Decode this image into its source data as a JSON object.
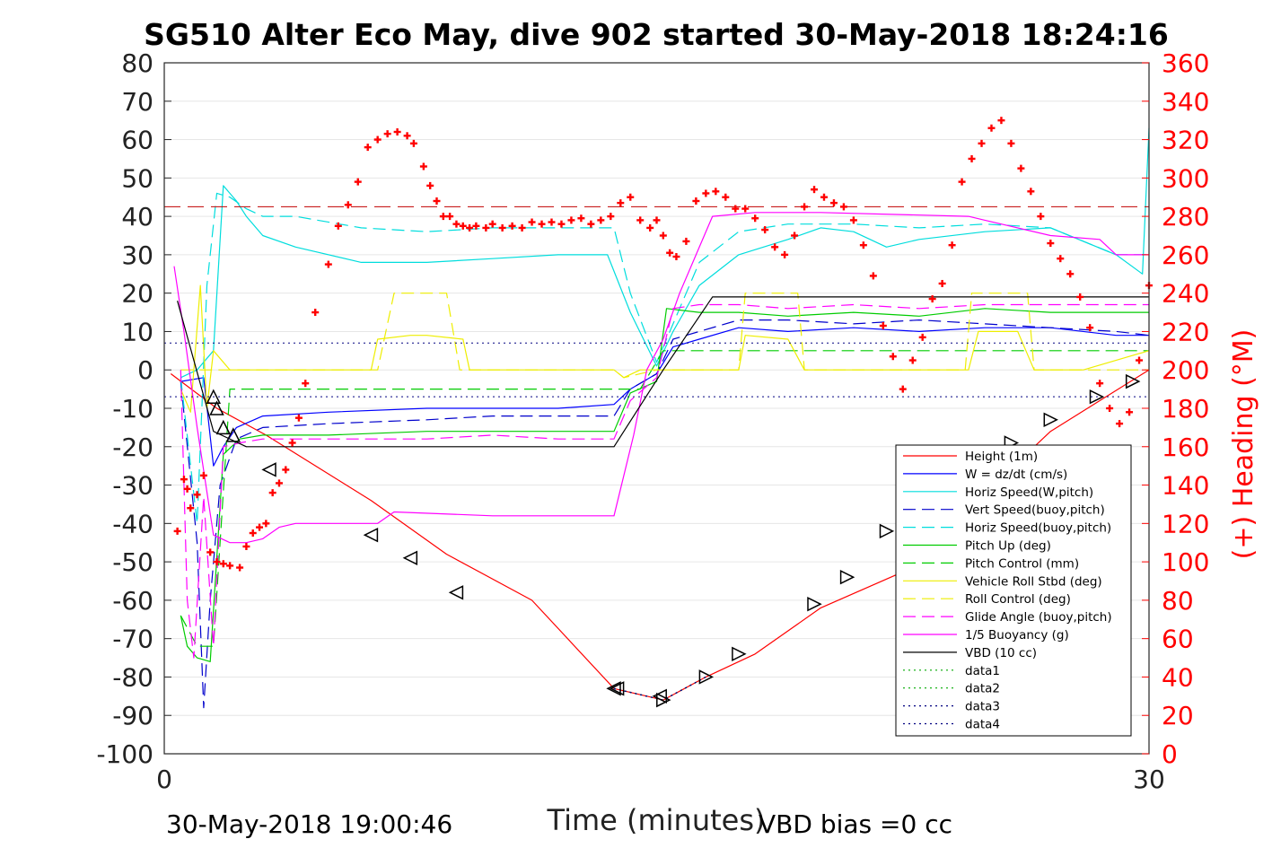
{
  "chart_data": {
    "type": "line",
    "title": "SG510 Alter Eco May, dive 902 started 30-May-2018 18:24:16",
    "xlabel": "Time (minutes)",
    "ylabel_right": "(+) Heading (°M)",
    "xlim": [
      0,
      30
    ],
    "ylim_left": [
      -100,
      80
    ],
    "ylim_right": [
      0,
      360
    ],
    "x_ticks": [
      "0",
      "30"
    ],
    "y_ticks_left": [
      "80",
      "70",
      "60",
      "50",
      "40",
      "30",
      "20",
      "10",
      "0",
      "-10",
      "-20",
      "-30",
      "-40",
      "-50",
      "-60",
      "-70",
      "-80",
      "-90",
      "-100"
    ],
    "y_ticks_right": [
      "360",
      "340",
      "320",
      "300",
      "280",
      "260",
      "240",
      "220",
      "200",
      "180",
      "160",
      "140",
      "120",
      "100",
      "80",
      "60",
      "40",
      "20",
      "0"
    ],
    "grid": true,
    "legend_position": "bottom-right",
    "footer_left": "30-May-2018 19:00:46",
    "footer_right": "VBD bias =0 cc",
    "reference_lines": [
      {
        "y": 42.5,
        "color": "#c00000",
        "style": "dashed"
      },
      {
        "y": 7,
        "color": "#000080",
        "style": "dotted"
      },
      {
        "y": -7,
        "color": "#000080",
        "style": "dotted"
      }
    ],
    "series": [
      {
        "name": "Height (1m)",
        "color": "#ff0000",
        "dash": "solid",
        "x": [
          0.2,
          1.6,
          3.1,
          6.3,
          8.6,
          11.2,
          13.7,
          15.2,
          16.5,
          18.0,
          20.0,
          22.4,
          23.4,
          27.0,
          30.0
        ],
        "y": [
          -1,
          -10,
          -17,
          -34,
          -48,
          -60,
          -83,
          -86,
          -80,
          -74,
          -62,
          -53,
          -45,
          -16,
          0
        ]
      },
      {
        "name": "W = dz/dt (cm/s)",
        "color": "#0000ff",
        "dash": "solid",
        "x": [
          0.5,
          1.2,
          1.5,
          1.8,
          2.2,
          3.0,
          5,
          8,
          10,
          12,
          13.7,
          14.2,
          15.0,
          15.5,
          16.3,
          17.5,
          19,
          21,
          23,
          25,
          27,
          29,
          30
        ],
        "y": [
          -3,
          -2,
          -25,
          -20,
          -15,
          -12,
          -11,
          -10,
          -10,
          -10,
          -9,
          -5,
          -1,
          6,
          8,
          11,
          10,
          11,
          10,
          11,
          11,
          9,
          9
        ]
      },
      {
        "name": "Horiz Speed(W,pitch)",
        "color": "#00dddd",
        "dash": "solid",
        "x": [
          0.5,
          1.0,
          1.5,
          1.8,
          2.2,
          2.5,
          3.0,
          4,
          6,
          8,
          10,
          12,
          13.5,
          14.2,
          15.0,
          15.5,
          16.3,
          17.5,
          19,
          20,
          21,
          22,
          23,
          25,
          27,
          29,
          29.8,
          30
        ],
        "y": [
          -2,
          0,
          5,
          48,
          44,
          40,
          35,
          32,
          28,
          28,
          29,
          30,
          30,
          15,
          1,
          10,
          22,
          30,
          34,
          37,
          36,
          32,
          34,
          36,
          37,
          30,
          25,
          63
        ]
      },
      {
        "name": "Vert Speed(buoy,pitch)",
        "color": "#0000cc",
        "dash": "dashed",
        "x": [
          0.5,
          1.0,
          1.2,
          1.4,
          1.7,
          2.2,
          3.0,
          5,
          8,
          10,
          12,
          13.7,
          14.2,
          15.0,
          15.5,
          16.3,
          17.5,
          19,
          21,
          23,
          25,
          27,
          29,
          30
        ],
        "y": [
          -3,
          -45,
          -88,
          -60,
          -30,
          -18,
          -15,
          -14,
          -13,
          -12,
          -12,
          -12,
          -5,
          -1,
          8,
          10,
          13,
          13,
          12,
          13,
          12,
          11,
          10,
          9
        ]
      },
      {
        "name": "Horiz Speed(buoy,pitch)",
        "color": "#00dddd",
        "dash": "dashed",
        "x": [
          0.5,
          1.0,
          1.3,
          1.6,
          2.0,
          2.5,
          3.0,
          4,
          6,
          8,
          10,
          12,
          13.7,
          14.2,
          15.0,
          15.5,
          16.3,
          17.5,
          19,
          21,
          23,
          25,
          27,
          29,
          30
        ],
        "y": [
          -2,
          -40,
          22,
          46,
          45,
          42,
          40,
          40,
          37,
          36,
          37,
          37,
          37,
          20,
          2,
          12,
          28,
          36,
          38,
          38,
          37,
          38,
          37,
          30,
          30
        ]
      },
      {
        "name": "Pitch Up (deg)",
        "color": "#00cc00",
        "dash": "solid",
        "x": [
          0.5,
          0.7,
          1.0,
          1.4,
          1.8,
          2.3,
          3.0,
          5,
          8,
          10,
          12,
          13.7,
          14.2,
          15.0,
          15.3,
          16.3,
          17.5,
          19,
          21,
          23,
          25,
          27,
          29,
          30
        ],
        "y": [
          -64,
          -72,
          -75,
          -76,
          -22,
          -18,
          -17,
          -17,
          -16,
          -16,
          -16,
          -16,
          -6,
          -3,
          16,
          15,
          15,
          14,
          15,
          14,
          16,
          15,
          15,
          15
        ]
      },
      {
        "name": "Pitch Control (mm)",
        "color": "#00cc00",
        "dash": "dashed",
        "x": [
          0.5,
          1.0,
          1.5,
          2.0,
          3.0,
          8,
          13.7,
          14.5,
          15.2,
          15.6,
          20,
          25,
          30
        ],
        "y": [
          -64,
          -72,
          -72,
          -5,
          -5,
          -5,
          -5,
          -5,
          5,
          5,
          5,
          5,
          5
        ]
      },
      {
        "name": "Vehicle Roll Stbd (deg)",
        "color": "#eeee00",
        "dash": "solid",
        "x": [
          0.5,
          0.8,
          1.1,
          1.3,
          1.5,
          2.0,
          2.3,
          3.0,
          6.3,
          6.5,
          7.5,
          8.0,
          9.1,
          9.3,
          13.7,
          14.0,
          14.5,
          15.0,
          15.5,
          17.5,
          17.7,
          19,
          19.5,
          20,
          24.5,
          24.8,
          26.0,
          26.5,
          27.5,
          28.0,
          30
        ],
        "y": [
          -5,
          -11,
          22,
          -10,
          5,
          0,
          0,
          0,
          0,
          8,
          9,
          9,
          8,
          0,
          0,
          -2,
          0,
          0,
          0,
          0,
          9,
          8,
          0,
          0,
          0,
          10,
          10,
          0,
          0,
          0,
          5
        ]
      },
      {
        "name": "Roll Control (deg)",
        "color": "#eeee00",
        "dash": "dashed",
        "x": [
          0.5,
          1.2,
          1.5,
          2.0,
          3.0,
          6.3,
          6.5,
          7.0,
          8.6,
          9.0,
          13.7,
          14.0,
          15.0,
          15.5,
          17.5,
          17.7,
          19.3,
          19.5,
          24.4,
          24.6,
          26.3,
          26.5,
          27.5,
          28.0,
          30
        ],
        "y": [
          0,
          0,
          0,
          0,
          0,
          0,
          0,
          20,
          20,
          0,
          0,
          -2,
          0,
          0,
          0,
          20,
          20,
          0,
          0,
          20,
          20,
          0,
          0,
          0,
          0
        ]
      },
      {
        "name": "Glide Angle (buoy,pitch)",
        "color": "#ff00ff",
        "dash": "dashed",
        "x": [
          0.5,
          0.7,
          0.9,
          1.2,
          1.5,
          1.8,
          2.3,
          3.0,
          5,
          8,
          10,
          12,
          13.7,
          14.2,
          15.0,
          15.5,
          16.3,
          17.5,
          19,
          21,
          23,
          25,
          27,
          29,
          30
        ],
        "y": [
          0,
          -60,
          -75,
          -33,
          -72,
          -20,
          -19,
          -18,
          -18,
          -18,
          -17,
          -18,
          -18,
          -8,
          -2,
          16,
          17,
          17,
          16,
          17,
          16,
          17,
          17,
          17,
          17
        ]
      },
      {
        "name": "1/5 Buoyancy (g)",
        "color": "#ff00ff",
        "dash": "solid",
        "x": [
          0.3,
          0.6,
          1.0,
          1.5,
          2.0,
          2.5,
          3.0,
          3.5,
          4.0,
          5.0,
          6.5,
          7.0,
          10,
          13.7,
          14.3,
          14.7,
          15.2,
          15.7,
          16.2,
          16.7,
          18,
          20,
          24.5,
          25.0,
          27,
          28.5,
          29.0,
          30
        ],
        "y": [
          27,
          10,
          -15,
          -43,
          -45,
          -45,
          -44,
          -41,
          -40,
          -40,
          -40,
          -37,
          -38,
          -38,
          -17,
          0,
          8,
          20,
          30,
          40,
          41,
          41,
          40,
          39,
          35,
          34,
          30,
          30
        ]
      },
      {
        "name": "VBD (10 cc)",
        "color": "#000000",
        "dash": "solid",
        "x": [
          0.4,
          1.5,
          2.5,
          13.7,
          15.2,
          16.7,
          30
        ],
        "y": [
          18,
          -16,
          -20,
          -20,
          0,
          19,
          19
        ]
      },
      {
        "name": "data1",
        "color": "#00aa00",
        "dash": "dotted",
        "x": [
          13.7,
          15.2,
          16.5
        ],
        "y": [
          -83,
          -86,
          -80
        ]
      },
      {
        "name": "data2",
        "color": "#00aa00",
        "dash": "dotted",
        "x": [
          13.7,
          15.2,
          16.5
        ],
        "y": [
          -83,
          -86,
          -80
        ]
      },
      {
        "name": "data3",
        "color": "#000080",
        "dash": "dotted",
        "x": [
          13.7,
          15.2,
          16.5
        ],
        "y": [
          -83,
          -86,
          -80
        ]
      },
      {
        "name": "data4",
        "color": "#000080",
        "dash": "dotted",
        "x": [
          13.7,
          15.2,
          16.5
        ],
        "y": [
          -83,
          -86,
          -80
        ]
      }
    ],
    "heading": {
      "axis": "right",
      "color": "#ff0000",
      "marker": "+",
      "x": [
        0.4,
        0.6,
        0.7,
        0.8,
        1.0,
        1.2,
        1.4,
        1.6,
        1.8,
        2.0,
        2.3,
        2.5,
        2.7,
        2.9,
        3.1,
        3.3,
        3.5,
        3.7,
        3.9,
        4.1,
        4.3,
        4.6,
        5.0,
        5.3,
        5.6,
        5.9,
        6.2,
        6.5,
        6.8,
        7.1,
        7.4,
        7.6,
        7.9,
        8.1,
        8.3,
        8.5,
        8.7,
        8.9,
        9.1,
        9.3,
        9.5,
        9.8,
        10.0,
        10.3,
        10.6,
        10.9,
        11.2,
        11.5,
        11.8,
        12.1,
        12.4,
        12.7,
        13.0,
        13.3,
        13.6,
        13.9,
        14.2,
        14.5,
        14.8,
        15.0,
        15.2,
        15.4,
        15.6,
        15.9,
        16.2,
        16.5,
        16.8,
        17.1,
        17.4,
        17.7,
        18.0,
        18.3,
        18.6,
        18.9,
        19.2,
        19.5,
        19.8,
        20.1,
        20.4,
        20.7,
        21.0,
        21.3,
        21.6,
        21.9,
        22.2,
        22.5,
        22.8,
        23.1,
        23.4,
        23.7,
        24.0,
        24.3,
        24.6,
        24.9,
        25.2,
        25.5,
        25.8,
        26.1,
        26.4,
        26.7,
        27.0,
        27.3,
        27.6,
        27.9,
        28.2,
        28.5,
        28.8,
        29.1,
        29.4,
        29.7,
        30.0
      ],
      "y": [
        116,
        143,
        138,
        128,
        135,
        145,
        105,
        100,
        99,
        98,
        97,
        108,
        115,
        118,
        120,
        136,
        141,
        148,
        162,
        175,
        193,
        230,
        255,
        275,
        286,
        298,
        316,
        320,
        323,
        324,
        322,
        318,
        306,
        296,
        288,
        280,
        280,
        276,
        275,
        274,
        275,
        274,
        276,
        274,
        275,
        274,
        277,
        276,
        277,
        276,
        278,
        279,
        276,
        278,
        280,
        287,
        290,
        278,
        274,
        278,
        270,
        261,
        259,
        267,
        288,
        292,
        293,
        290,
        284,
        284,
        279,
        273,
        264,
        260,
        270,
        285,
        294,
        290,
        287,
        285,
        278,
        265,
        249,
        223,
        207,
        190,
        205,
        217,
        237,
        245,
        265,
        298,
        310,
        318,
        326,
        330,
        318,
        305,
        293,
        280,
        266,
        258,
        250,
        238,
        222,
        193,
        180,
        172,
        178,
        205,
        244
      ]
    },
    "markers": {
      "axis": "left",
      "color": "#000000",
      "shape": "triangle",
      "x": [
        1.5,
        1.6,
        1.8,
        2.1,
        3.2,
        6.3,
        7.5,
        8.9,
        13.7,
        13.8,
        15.1,
        15.2,
        16.5,
        17.5,
        19.8,
        20.8,
        22.0,
        23.4,
        24.6,
        25.8,
        27.0,
        28.4,
        29.5
      ],
      "y": [
        -7,
        -10,
        -15,
        -17,
        -26,
        -43,
        -49,
        -58,
        -83,
        -83,
        -85,
        -86,
        -80,
        -74,
        -61,
        -54,
        -42,
        -35,
        -29,
        -19,
        -13,
        -7,
        -3
      ]
    }
  }
}
